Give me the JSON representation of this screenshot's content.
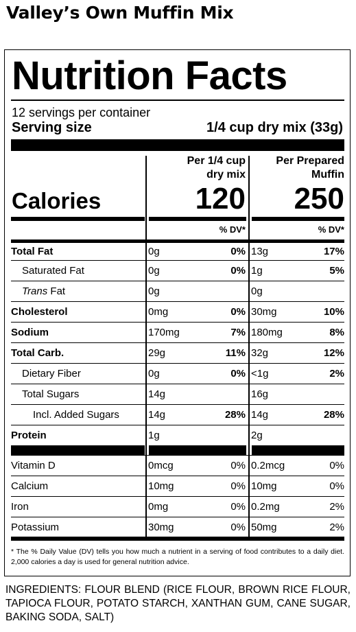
{
  "product_title": "Valley’s Own Muffin Mix",
  "panel": {
    "heading": "Nutrition Facts",
    "servings_per_container": "12 servings per container",
    "serving_size_label": "Serving size",
    "serving_size_value": "1/4 cup dry mix (33g)",
    "col1_header_line1": "Per 1/4 cup",
    "col1_header_line2": "dry mix",
    "col2_header_line1": "Per Prepared",
    "col2_header_line2": "Muffin",
    "calories_label": "Calories",
    "calories_col1": "120",
    "calories_col2": "250",
    "dv_header": "% DV*",
    "nutrients": [
      {
        "name": "Total Fat",
        "amt1": "0g",
        "dv1": "0%",
        "amt2": "13g",
        "dv2": "17%"
      },
      {
        "name": "Saturated Fat",
        "amt1": "0g",
        "dv1": "0%",
        "amt2": "1g",
        "dv2": "5%"
      },
      {
        "name_italic": "Trans",
        "name_rest": " Fat",
        "amt1": "0g",
        "dv1": "",
        "amt2": "0g",
        "dv2": ""
      },
      {
        "name": "Cholesterol",
        "amt1": "0mg",
        "dv1": "0%",
        "amt2": "30mg",
        "dv2": "10%"
      },
      {
        "name": "Sodium",
        "amt1": "170mg",
        "dv1": "7%",
        "amt2": "180mg",
        "dv2": "8%"
      },
      {
        "name": "Total Carb.",
        "amt1": "29g",
        "dv1": "11%",
        "amt2": "32g",
        "dv2": "12%"
      },
      {
        "name": "Dietary Fiber",
        "amt1": "0g",
        "dv1": "0%",
        "amt2": "<1g",
        "dv2": "2%"
      },
      {
        "name": "Total Sugars",
        "amt1": "14g",
        "dv1": "",
        "amt2": "16g",
        "dv2": ""
      },
      {
        "name": "Incl. Added Sugars",
        "amt1": "14g",
        "dv1": "28%",
        "amt2": "14g",
        "dv2": "28%"
      },
      {
        "name": "Protein",
        "amt1": "1g",
        "dv1": "",
        "amt2": "2g",
        "dv2": ""
      },
      {
        "name": "Vitamin D",
        "amt1": "0mcg",
        "dv1": "0%",
        "amt2": "0.2mcg",
        "dv2": "0%"
      },
      {
        "name": "Calcium",
        "amt1": "10mg",
        "dv1": "0%",
        "amt2": "10mg",
        "dv2": "0%"
      },
      {
        "name": "Iron",
        "amt1": "0mg",
        "dv1": "0%",
        "amt2": "0.2mg",
        "dv2": "2%"
      },
      {
        "name": "Potassium",
        "amt1": "30mg",
        "dv1": "0%",
        "amt2": "50mg",
        "dv2": "2%"
      }
    ],
    "footnote": "* The % Daily Value (DV) tells you how much a nutrient in a serving of food contributes to a daily diet. 2,000 calories a day is used for general nutrition advice."
  },
  "ingredients": "INGREDIENTS: FLOUR BLEND (RICE FLOUR, BROWN RICE FLOUR, TAPIOCA FLOUR, POTATO STARCH, XANTHAN GUM, CANE SUGAR, BAKING SODA, SALT)"
}
